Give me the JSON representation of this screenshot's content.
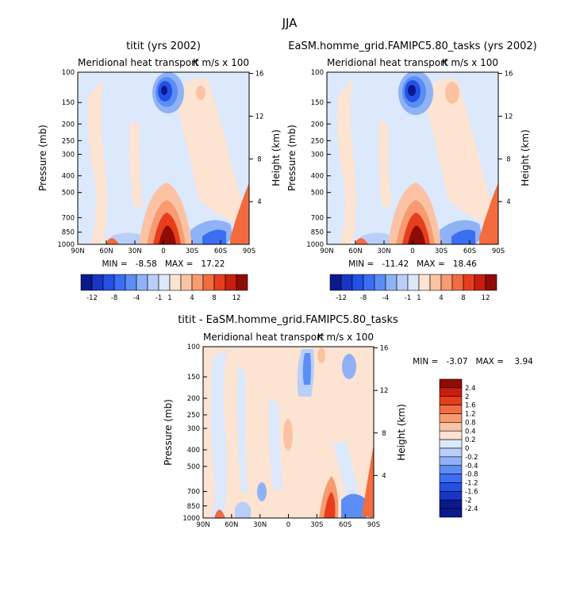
{
  "figure_title": "JJA",
  "palette": {
    "cool": [
      "#0a1a8c",
      "#1a35c4",
      "#2450e6",
      "#3b6ef2",
      "#5b8ef5",
      "#8fb2f7",
      "#b9cff9",
      "#dce8fb"
    ],
    "warm": [
      "#fde3d2",
      "#fbc3a4",
      "#f89b70",
      "#f36c40",
      "#e63e1d",
      "#c81e0e",
      "#8f0c05"
    ]
  },
  "chart_data": [
    {
      "type": "heatmap",
      "title": "titit (yrs 2002)",
      "subtitle_left": "Meridional heat transport",
      "subtitle_right": "K m/s x 100",
      "xlabel": "",
      "ylabel": "Pressure (mb)",
      "y2label": "Height (km)",
      "x_ticks": [
        "90N",
        "60N",
        "30N",
        "0",
        "30S",
        "60S",
        "90S"
      ],
      "y_ticks": [
        "100",
        "150",
        "200",
        "250",
        "300",
        "400",
        "500",
        "700",
        "850",
        "1000"
      ],
      "y2_ticks": [
        "16",
        "12",
        "8",
        "4"
      ],
      "stats_text": "MIN =   -8.58   MAX =   17.22",
      "min": -8.58,
      "max": 17.22,
      "colorbar_labels": [
        "-12",
        "-8",
        "-4",
        "-1",
        "1",
        "4",
        "8",
        "12"
      ],
      "colorbar_orientation": "horizontal"
    },
    {
      "type": "heatmap",
      "title": "EaSM.homme_grid.FAMIPC5.80_tasks (yrs 2002)",
      "subtitle_left": "Meridional heat transport",
      "subtitle_right": "K m/s x 100",
      "xlabel": "",
      "ylabel": "Pressure (mb)",
      "y2label": "Height (km)",
      "x_ticks": [
        "90N",
        "60N",
        "30N",
        "0",
        "30S",
        "60S",
        "90S"
      ],
      "y_ticks": [
        "100",
        "150",
        "200",
        "250",
        "300",
        "400",
        "500",
        "700",
        "850",
        "1000"
      ],
      "y2_ticks": [
        "16",
        "12",
        "8",
        "4"
      ],
      "stats_text": "MIN =   -11.42   MAX =   18.46",
      "min": -11.42,
      "max": 18.46,
      "colorbar_labels": [
        "-12",
        "-8",
        "-4",
        "-1",
        "1",
        "4",
        "8",
        "12"
      ],
      "colorbar_orientation": "horizontal"
    },
    {
      "type": "heatmap",
      "title": "titit - EaSM.homme_grid.FAMIPC5.80_tasks",
      "subtitle_left": "Meridional heat transport",
      "subtitle_right": "K m/s x 100",
      "xlabel": "",
      "ylabel": "Pressure (mb)",
      "y2label": "Height (km)",
      "x_ticks": [
        "90N",
        "60N",
        "30N",
        "0",
        "30S",
        "60S",
        "90S"
      ],
      "y_ticks": [
        "100",
        "150",
        "200",
        "250",
        "300",
        "400",
        "500",
        "700",
        "850",
        "1000"
      ],
      "y2_ticks": [
        "16",
        "12",
        "8",
        "4"
      ],
      "stats_text": "MIN =   -3.07   MAX =    3.94",
      "min": -3.07,
      "max": 3.94,
      "colorbar_labels": [
        "2.4",
        "2",
        "1.6",
        "1.2",
        "0.8",
        "0.4",
        "0.2",
        "0",
        "-0.2",
        "-0.4",
        "-0.8",
        "-1.2",
        "-1.6",
        "-2",
        "-2.4"
      ],
      "colorbar_orientation": "vertical"
    }
  ]
}
